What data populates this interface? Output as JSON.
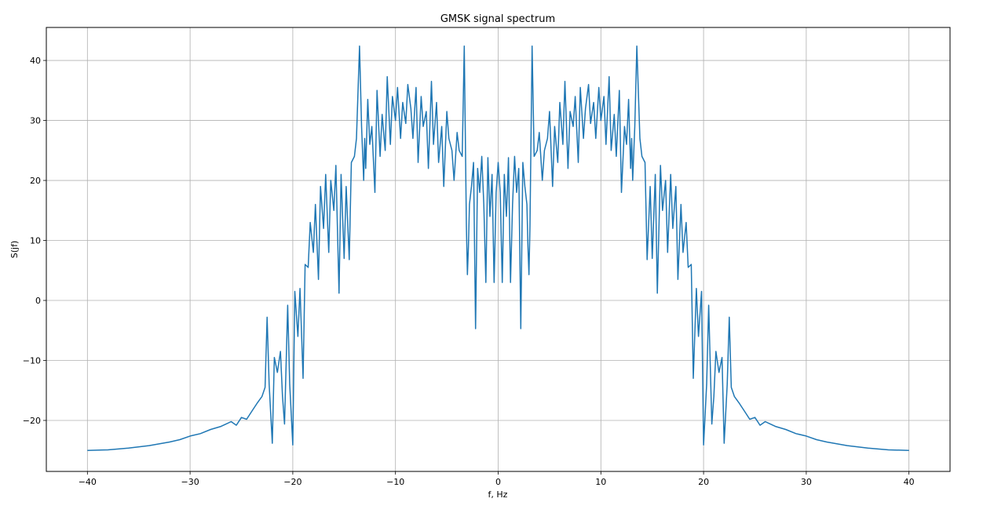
{
  "chart_data": {
    "type": "line",
    "title": "GMSK signal spectrum",
    "xlabel": "f, Hz",
    "ylabel": "S(jf)",
    "xlim": [
      -44.0,
      44.0
    ],
    "ylim": [
      -28.5,
      45.5
    ],
    "xticks": [
      -40,
      -30,
      -20,
      -10,
      0,
      10,
      20,
      30,
      40
    ],
    "xtick_labels": [
      "−40",
      "−30",
      "−20",
      "−10",
      "0",
      "10",
      "20",
      "30",
      "40"
    ],
    "yticks": [
      -20,
      -10,
      0,
      10,
      20,
      30,
      40
    ],
    "ytick_labels": [
      "−20",
      "−10",
      "0",
      "10",
      "20",
      "30",
      "40"
    ],
    "grid": true,
    "legend": "none",
    "series_color": "#1f77b4",
    "series": [
      {
        "description_of_shape": "symmetric about f=0",
        "x": [
          -40,
          -38,
          -36,
          -34,
          -32,
          -31,
          -30,
          -29,
          -28,
          -27,
          -26.5,
          -26,
          -25.5,
          -25,
          -24.5,
          -24,
          -23.5,
          -23,
          -22.7,
          -22.5,
          -22.3,
          -22,
          -21.8,
          -21.5,
          -21.2,
          -21,
          -20.8,
          -20.5,
          -20.3,
          -20,
          -19.8,
          -19.5,
          -19.3,
          -19,
          -18.8,
          -18.5,
          -18.3,
          -18,
          -17.8,
          -17.5,
          -17.3,
          -17,
          -16.8,
          -16.5,
          -16.3,
          -16,
          -15.8,
          -15.5,
          -15.3,
          -15,
          -14.8,
          -14.5,
          -14.3,
          -14,
          -13.8,
          -13.5,
          -13.3,
          -13.1,
          -13.0,
          -12.9,
          -12.7,
          -12.5,
          -12.3,
          -12,
          -11.8,
          -11.5,
          -11.3,
          -11,
          -10.8,
          -10.5,
          -10.3,
          -10,
          -9.8,
          -9.5,
          -9.3,
          -9,
          -8.8,
          -8.5,
          -8.3,
          -8,
          -7.8,
          -7.5,
          -7.3,
          -7,
          -6.8,
          -6.5,
          -6.3,
          -6,
          -5.8,
          -5.5,
          -5.3,
          -5,
          -4.8,
          -4.5,
          -4.3,
          -4,
          -3.8,
          -3.5,
          -3.3,
          -3.1,
          -3.0,
          -2.9,
          -2.8,
          -2.6,
          -2.4,
          -2.2,
          -2.0,
          -1.8,
          -1.6,
          -1.4,
          -1.2,
          -1.0,
          -0.8,
          -0.6,
          -0.4,
          -0.2,
          0.0,
          0.2,
          0.4,
          0.6,
          0.8,
          1.0,
          1.2,
          1.4,
          1.6,
          1.8,
          2.0,
          2.2,
          2.4,
          2.6,
          2.8,
          2.9,
          3.0,
          3.1,
          3.3,
          3.5,
          3.8,
          4,
          4.3,
          4.5,
          4.8,
          5,
          5.3,
          5.5,
          5.8,
          6,
          6.3,
          6.5,
          6.8,
          7,
          7.3,
          7.5,
          7.8,
          8,
          8.3,
          8.5,
          8.8,
          9,
          9.3,
          9.5,
          9.8,
          10,
          10.3,
          10.5,
          10.8,
          11,
          11.3,
          11.5,
          11.8,
          12,
          12.3,
          12.5,
          12.7,
          12.9,
          13.0,
          13.1,
          13.3,
          13.5,
          13.8,
          14,
          14.3,
          14.5,
          14.8,
          15,
          15.3,
          15.5,
          15.8,
          16,
          16.3,
          16.5,
          16.8,
          17,
          17.3,
          17.5,
          17.8,
          18,
          18.3,
          18.5,
          18.8,
          19,
          19.3,
          19.5,
          19.8,
          20,
          20.3,
          20.5,
          20.8,
          21,
          21.2,
          21.5,
          21.8,
          22,
          22.3,
          22.5,
          22.7,
          23,
          23.5,
          24,
          24.5,
          25,
          25.5,
          26,
          26.5,
          27,
          28,
          29,
          30,
          31,
          32,
          34,
          36,
          38,
          40
        ],
        "y": [
          -25,
          -24.9,
          -24.6,
          -24.2,
          -23.6,
          -23.2,
          -22.6,
          -22.2,
          -21.5,
          -21.0,
          -20.6,
          -20.2,
          -20.8,
          -19.5,
          -19.8,
          -18.5,
          -17.2,
          -16.0,
          -14.5,
          -2.8,
          -14.0,
          -23.8,
          -9.5,
          -12.0,
          -8.5,
          -16.0,
          -20.6,
          -0.8,
          -14.0,
          -24.1,
          1.5,
          -6.0,
          2.0,
          -13.0,
          6.0,
          5.5,
          13.0,
          8.0,
          16.0,
          3.5,
          19.0,
          12.0,
          21.0,
          8.0,
          20.0,
          15.0,
          22.5,
          1.2,
          21.0,
          7.0,
          19.0,
          6.8,
          23.0,
          24.0,
          27.0,
          42.4,
          29.0,
          20.0,
          27.0,
          22.0,
          33.5,
          26.0,
          29.0,
          18.0,
          35.0,
          24.0,
          31.0,
          25.0,
          37.3,
          26.0,
          34.0,
          30.0,
          35.5,
          27.0,
          33.0,
          29.5,
          36.0,
          32.0,
          27.0,
          35.5,
          23.0,
          34.0,
          29.0,
          31.5,
          22.0,
          36.5,
          26.0,
          33.0,
          23.0,
          29.0,
          19.0,
          31.5,
          27.0,
          25.0,
          20.0,
          28.0,
          25.0,
          24.0,
          42.4,
          12.5,
          4.3,
          9.0,
          16.0,
          19.0,
          23.0,
          -4.7,
          22.0,
          18.0,
          24.0,
          16.0,
          3.0,
          23.8,
          14.0,
          21.0,
          3.0,
          18.0,
          23.0,
          18.0,
          3.0,
          21.0,
          14.0,
          23.8,
          3.0,
          16.0,
          24.0,
          18.0,
          22.0,
          -4.7,
          23.0,
          19.0,
          16.0,
          9.0,
          4.3,
          12.5,
          42.4,
          24.0,
          25.0,
          28.0,
          20.0,
          25.0,
          27.0,
          31.5,
          19.0,
          29.0,
          23.0,
          33.0,
          26.0,
          36.5,
          22.0,
          31.5,
          29.0,
          34.0,
          23.0,
          35.5,
          27.0,
          32.0,
          36.0,
          29.5,
          33.0,
          27.0,
          35.5,
          30.0,
          34.0,
          26.0,
          37.3,
          25.0,
          31.0,
          24.0,
          35.0,
          18.0,
          29.0,
          26.0,
          33.5,
          22.0,
          27.0,
          20.0,
          29.0,
          42.4,
          27.0,
          24.0,
          23.0,
          6.8,
          19.0,
          7.0,
          21.0,
          1.2,
          22.5,
          15.0,
          20.0,
          8.0,
          21.0,
          12.0,
          19.0,
          3.5,
          16.0,
          8.0,
          13.0,
          5.5,
          6.0,
          -13.0,
          2.0,
          -6.0,
          1.5,
          -24.1,
          -14.0,
          -0.8,
          -20.6,
          -16.0,
          -8.5,
          -12.0,
          -9.5,
          -23.8,
          -14.0,
          -2.8,
          -14.5,
          -16.0,
          -17.2,
          -18.5,
          -19.8,
          -19.5,
          -20.8,
          -20.2,
          -20.6,
          -21.0,
          -21.5,
          -22.2,
          -22.6,
          -23.2,
          -23.6,
          -24.2,
          -24.6,
          -24.9,
          -25
        ]
      }
    ]
  }
}
